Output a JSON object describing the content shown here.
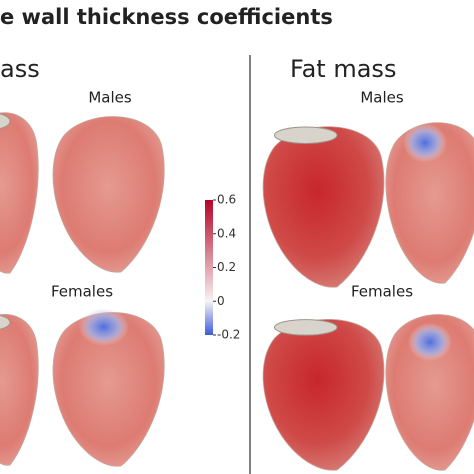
{
  "title": "e wall thickness coefficients",
  "panels": [
    {
      "title": "ass",
      "rows": [
        "Males",
        "Females"
      ]
    },
    {
      "title": "Fat mass",
      "rows": [
        "Males",
        "Females"
      ]
    }
  ],
  "colorbar": {
    "lim": [
      -0.2,
      0.6
    ],
    "ticks": [
      0.6,
      0.4,
      0.2,
      0,
      -0.2
    ]
  }
}
